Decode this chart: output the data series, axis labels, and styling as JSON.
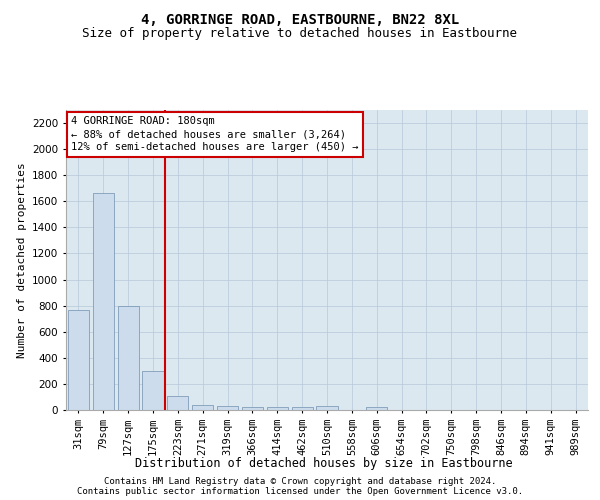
{
  "title1": "4, GORRINGE ROAD, EASTBOURNE, BN22 8XL",
  "title2": "Size of property relative to detached houses in Eastbourne",
  "xlabel": "Distribution of detached houses by size in Eastbourne",
  "ylabel": "Number of detached properties",
  "categories": [
    "31sqm",
    "79sqm",
    "127sqm",
    "175sqm",
    "223sqm",
    "271sqm",
    "319sqm",
    "366sqm",
    "414sqm",
    "462sqm",
    "510sqm",
    "558sqm",
    "606sqm",
    "654sqm",
    "702sqm",
    "750sqm",
    "798sqm",
    "846sqm",
    "894sqm",
    "941sqm",
    "989sqm"
  ],
  "values": [
    770,
    1660,
    800,
    300,
    110,
    40,
    30,
    20,
    20,
    20,
    30,
    0,
    20,
    0,
    0,
    0,
    0,
    0,
    0,
    0,
    0
  ],
  "bar_color": "#ccdcec",
  "bar_edge_color": "#7090b0",
  "vline_color": "#cc0000",
  "vline_pos": 3.5,
  "annotation_line1": "4 GORRINGE ROAD: 180sqm",
  "annotation_line2": "← 88% of detached houses are smaller (3,264)",
  "annotation_line3": "12% of semi-detached houses are larger (450) →",
  "annotation_box_edgecolor": "#cc0000",
  "annotation_bg_color": "#ffffff",
  "ylim": [
    0,
    2300
  ],
  "yticks": [
    0,
    200,
    400,
    600,
    800,
    1000,
    1200,
    1400,
    1600,
    1800,
    2000,
    2200
  ],
  "footer1": "Contains HM Land Registry data © Crown copyright and database right 2024.",
  "footer2": "Contains public sector information licensed under the Open Government Licence v3.0.",
  "bg_color": "#ffffff",
  "plot_bg_color": "#dce8f0",
  "grid_color": "#b8c8d8",
  "title1_fontsize": 10,
  "title2_fontsize": 9,
  "tick_fontsize": 7.5,
  "ylabel_fontsize": 8,
  "xlabel_fontsize": 8.5,
  "annotation_fontsize": 7.5,
  "footer_fontsize": 6.5
}
